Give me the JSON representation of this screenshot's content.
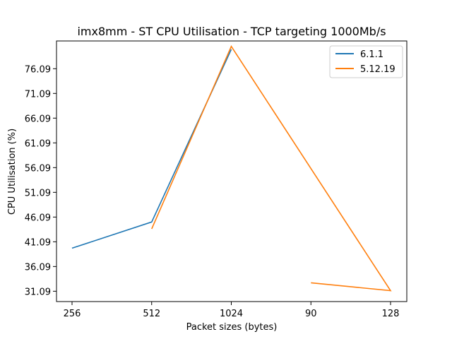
{
  "chart_data": {
    "type": "line",
    "title": "imx8mm - ST CPU Utilisation - TCP targeting 1000Mb/s",
    "xlabel": "Packet sizes (bytes)",
    "ylabel": "CPU Utilisation (%)",
    "categories": [
      "256",
      "512",
      "1024",
      "90",
      "128"
    ],
    "yticks": [
      "31.09",
      "36.09",
      "41.09",
      "46.09",
      "51.09",
      "56.09",
      "61.09",
      "66.09",
      "71.09",
      "76.09"
    ],
    "ylim": [
      29.0,
      81.7
    ],
    "legend_position": "top-right",
    "grid": false,
    "series": [
      {
        "name": "6.1.1",
        "color": "#1f77b4",
        "points": [
          {
            "x": "256",
            "y": 39.8
          },
          {
            "x": "512",
            "y": 45.1
          },
          {
            "x": "1024",
            "y": 80.0
          }
        ]
      },
      {
        "name": "5.12.19",
        "color": "#ff7f0e",
        "points": [
          {
            "x": "512",
            "y": 43.7
          },
          {
            "x": "1024",
            "y": 80.6
          },
          {
            "x": "128",
            "y": 31.2
          },
          {
            "x": "90",
            "y": 32.8
          }
        ]
      }
    ]
  }
}
